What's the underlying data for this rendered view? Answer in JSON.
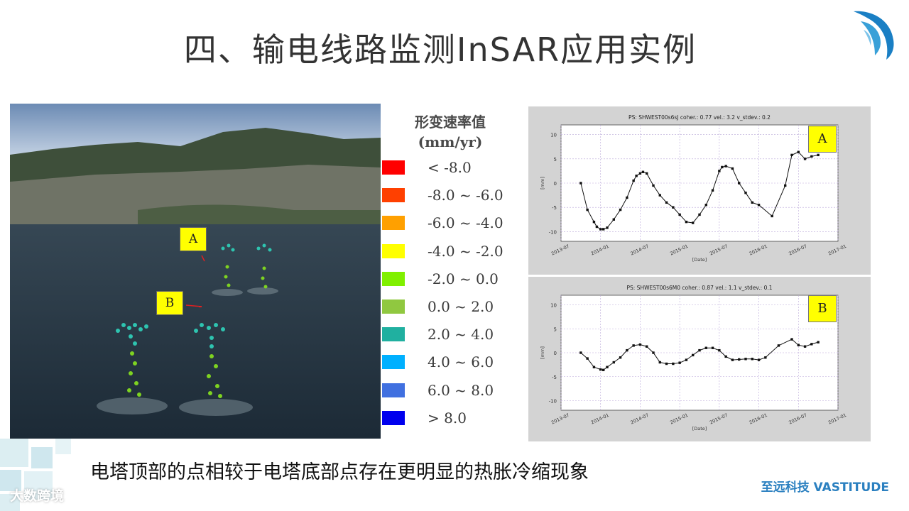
{
  "title": "四、输电线路监测InSAR应用实例",
  "caption": "电塔顶部的点相较于电塔底部点存在更明显的热胀冷缩现象",
  "company": "至远科技 VASTITUDE",
  "watermark": "大数跨境",
  "map_tags": [
    "A",
    "B"
  ],
  "legend": {
    "title": "形变速率值",
    "unit": "(mm/yr)",
    "items": [
      {
        "label": "< -8.0",
        "color": "#ff0000"
      },
      {
        "label": "-8.0 ~ -6.0",
        "color": "#ff4000"
      },
      {
        "label": "-6.0 ~ -4.0",
        "color": "#ffa000"
      },
      {
        "label": "-4.0 ~ -2.0",
        "color": "#ffff00"
      },
      {
        "label": "-2.0 ~ 0.0",
        "color": "#80f000"
      },
      {
        "label": "0.0 ~ 2.0",
        "color": "#90c840"
      },
      {
        "label": "2.0 ~ 4.0",
        "color": "#20b0a0"
      },
      {
        "label": "4.0 ~ 6.0",
        "color": "#00b0ff"
      },
      {
        "label": "6.0 ~ 8.0",
        "color": "#4070e0"
      },
      {
        "label": "> 8.0",
        "color": "#0000ee"
      }
    ]
  },
  "chart_data": [
    {
      "type": "line",
      "tag": "A",
      "title": "PS: SHWEST00s6sJ coher.: 0.77 vel.: 3.2 v_stdev.: 0.2",
      "xlabel": "[Date]",
      "ylabel": "[mm]",
      "ylim": [
        -12,
        12
      ],
      "yticks": [
        10,
        5,
        0,
        -5,
        -10
      ],
      "xlim": [
        "2013-07",
        "2017-01"
      ],
      "xticks": [
        "2013-07",
        "2014-01",
        "2014-07",
        "2015-01",
        "2015-07",
        "2016-01",
        "2016-07",
        "2017-01"
      ],
      "grid": true,
      "x": [
        "2013-10",
        "2013-11",
        "2013-12",
        "2013-12",
        "2014-01",
        "2014-01",
        "2014-02",
        "2014-03",
        "2014-04",
        "2014-05",
        "2014-06",
        "2014-06",
        "2014-07",
        "2014-07",
        "2014-08",
        "2014-09",
        "2014-10",
        "2014-11",
        "2014-12",
        "2015-01",
        "2015-02",
        "2015-03",
        "2015-04",
        "2015-05",
        "2015-06",
        "2015-07",
        "2015-07",
        "2015-08",
        "2015-09",
        "2015-10",
        "2015-11",
        "2015-12",
        "2016-01",
        "2016-03",
        "2016-05",
        "2016-06",
        "2016-07",
        "2016-08",
        "2016-09",
        "2016-10"
      ],
      "y": [
        0,
        -5.5,
        -8,
        -9,
        -9.5,
        -9.5,
        -9.2,
        -7.5,
        -5.5,
        -3,
        0.5,
        1.5,
        2,
        2.3,
        2,
        -0.5,
        -2.5,
        -4,
        -5,
        -6.5,
        -8,
        -8.2,
        -6.5,
        -4.5,
        -1.5,
        2.5,
        3.3,
        3.5,
        3,
        0,
        -2,
        -4,
        -4.5,
        -6.8,
        -0.5,
        5.8,
        6.4,
        5,
        5.5,
        5.8
      ]
    },
    {
      "type": "line",
      "tag": "B",
      "title": "PS: SHWEST00s6M0 coher.: 0.87 vel.: 1.1 v_stdev.: 0.1",
      "xlabel": "[Date]",
      "ylabel": "[mm]",
      "ylim": [
        -12,
        12
      ],
      "yticks": [
        10,
        5,
        0,
        -5,
        -10
      ],
      "xlim": [
        "2013-07",
        "2017-01"
      ],
      "xticks": [
        "2013-07",
        "2014-01",
        "2014-07",
        "2015-01",
        "2015-07",
        "2016-01",
        "2016-07",
        "2017-01"
      ],
      "grid": true,
      "x": [
        "2013-10",
        "2013-11",
        "2013-12",
        "2014-01",
        "2014-01",
        "2014-02",
        "2014-03",
        "2014-04",
        "2014-05",
        "2014-06",
        "2014-07",
        "2014-08",
        "2014-09",
        "2014-10",
        "2014-11",
        "2014-12",
        "2015-01",
        "2015-02",
        "2015-03",
        "2015-04",
        "2015-05",
        "2015-06",
        "2015-07",
        "2015-08",
        "2015-09",
        "2015-10",
        "2015-11",
        "2015-12",
        "2016-01",
        "2016-02",
        "2016-04",
        "2016-06",
        "2016-07",
        "2016-08",
        "2016-09",
        "2016-10"
      ],
      "y": [
        0,
        -1.2,
        -3,
        -3.5,
        -3.6,
        -3,
        -2,
        -1,
        0.5,
        1.5,
        1.7,
        1.3,
        0,
        -2,
        -2.3,
        -2.3,
        -2.1,
        -1.5,
        -0.5,
        0.5,
        1,
        1,
        0.5,
        -0.8,
        -1.5,
        -1.4,
        -1.3,
        -1.3,
        -1.5,
        -1,
        1.5,
        2.8,
        1.6,
        1.3,
        1.8,
        2.2
      ]
    }
  ]
}
